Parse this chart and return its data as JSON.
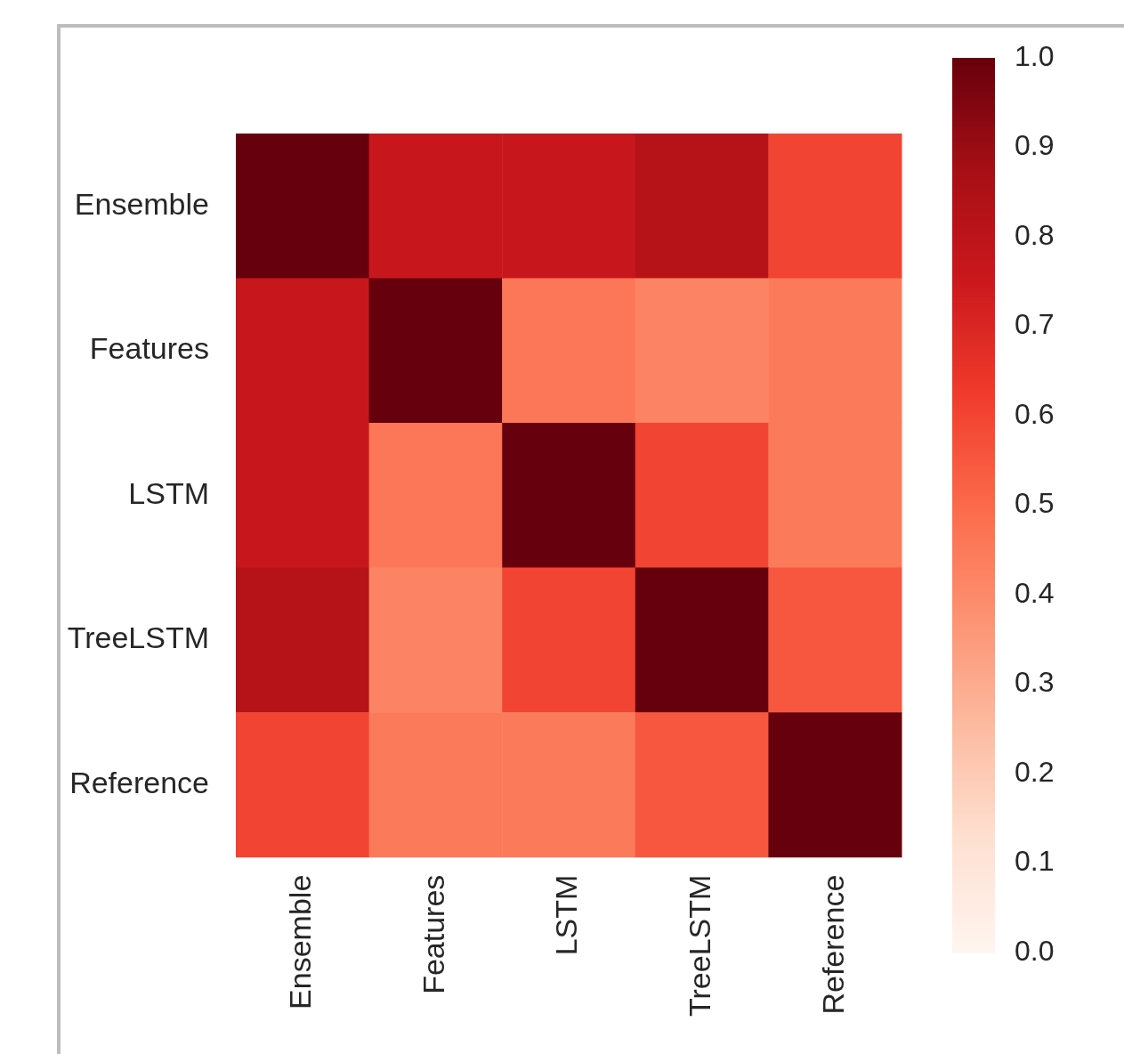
{
  "chart_data": {
    "type": "heatmap",
    "categories": [
      "Ensemble",
      "Features",
      "LSTM",
      "TreeLSTM",
      "Reference"
    ],
    "y_categories": [
      "Ensemble",
      "Features",
      "LSTM",
      "TreeLSTM",
      "Reference"
    ],
    "cells": [
      [
        1.0,
        0.76,
        0.76,
        0.82,
        0.6
      ],
      [
        0.76,
        1.0,
        0.46,
        0.42,
        0.45
      ],
      [
        0.76,
        0.46,
        1.0,
        0.6,
        0.45
      ],
      [
        0.82,
        0.42,
        0.6,
        1.0,
        0.55
      ],
      [
        0.6,
        0.45,
        0.45,
        0.55,
        1.0
      ]
    ],
    "clim": [
      0,
      1
    ],
    "cticks": [
      {
        "value": 0,
        "label": "0.0"
      },
      {
        "value": 0.1,
        "label": "0.1"
      },
      {
        "value": 0.2,
        "label": "0.2"
      },
      {
        "value": 0.3,
        "label": "0.3"
      },
      {
        "value": 0.4,
        "label": "0.4"
      },
      {
        "value": 0.5,
        "label": "0.5"
      },
      {
        "value": 0.6,
        "label": "0.6"
      },
      {
        "value": 0.7,
        "label": "0.7"
      },
      {
        "value": 0.8,
        "label": "0.8"
      },
      {
        "value": 0.9,
        "label": "0.9"
      },
      {
        "value": 1,
        "label": "1.0"
      }
    ]
  }
}
